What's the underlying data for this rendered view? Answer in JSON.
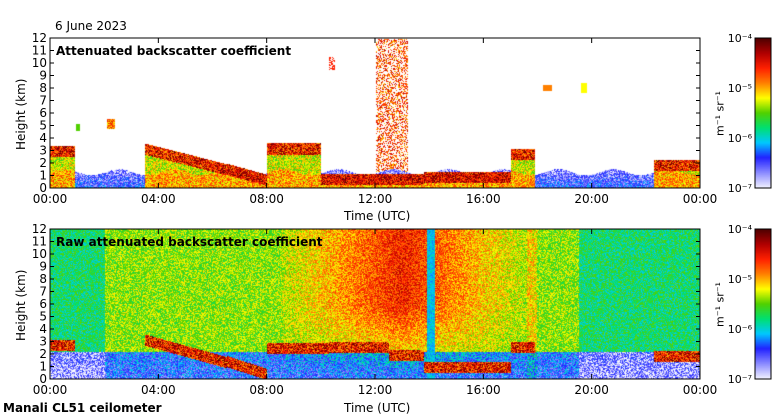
{
  "date": "6 June 2023",
  "footer": "Manali CL51 ceilometer",
  "colorbar_unit": "m⁻¹ sr⁻¹",
  "colors": {
    "scale": [
      "#f0f0ff",
      "#8a8aff",
      "#2222ff",
      "#00c8ff",
      "#00e070",
      "#50d000",
      "#ffff00",
      "#ff8000",
      "#ff2000",
      "#b00000",
      "#500000"
    ]
  },
  "chart_data": [
    {
      "type": "heatmap",
      "title": "Attenuated backscatter coefficient",
      "xlabel": "Time (UTC)",
      "ylabel": "Height (km)",
      "xticks": [
        "00:00",
        "04:00",
        "08:00",
        "12:00",
        "16:00",
        "20:00",
        "00:00"
      ],
      "yticks": [
        "0",
        "1",
        "2",
        "3",
        "4",
        "5",
        "6",
        "7",
        "8",
        "9",
        "10",
        "11",
        "12"
      ],
      "xlim_hours": [
        0,
        24
      ],
      "ylim_km": [
        0,
        12
      ],
      "colorbar": {
        "ticks": [
          "10⁻⁷",
          "10⁻⁶",
          "10⁻⁵",
          "10⁻⁴"
        ],
        "range_exp": [
          -7,
          -4
        ],
        "scale": "log"
      },
      "variant": "filtered"
    },
    {
      "type": "heatmap",
      "title": "Raw attenuated backscatter coefficient",
      "xlabel": "Time (UTC)",
      "ylabel": "Height (km)",
      "xticks": [
        "00:00",
        "04:00",
        "08:00",
        "12:00",
        "16:00",
        "20:00",
        "00:00"
      ],
      "yticks": [
        "0",
        "1",
        "2",
        "3",
        "4",
        "5",
        "6",
        "7",
        "8",
        "9",
        "10",
        "11",
        "12"
      ],
      "xlim_hours": [
        0,
        24
      ],
      "ylim_km": [
        0,
        12
      ],
      "colorbar": {
        "ticks": [
          "10⁻⁷",
          "10⁻⁶",
          "10⁻⁵",
          "10⁻⁴"
        ],
        "range_exp": [
          -7,
          -4
        ],
        "scale": "log"
      },
      "variant": "raw"
    }
  ]
}
